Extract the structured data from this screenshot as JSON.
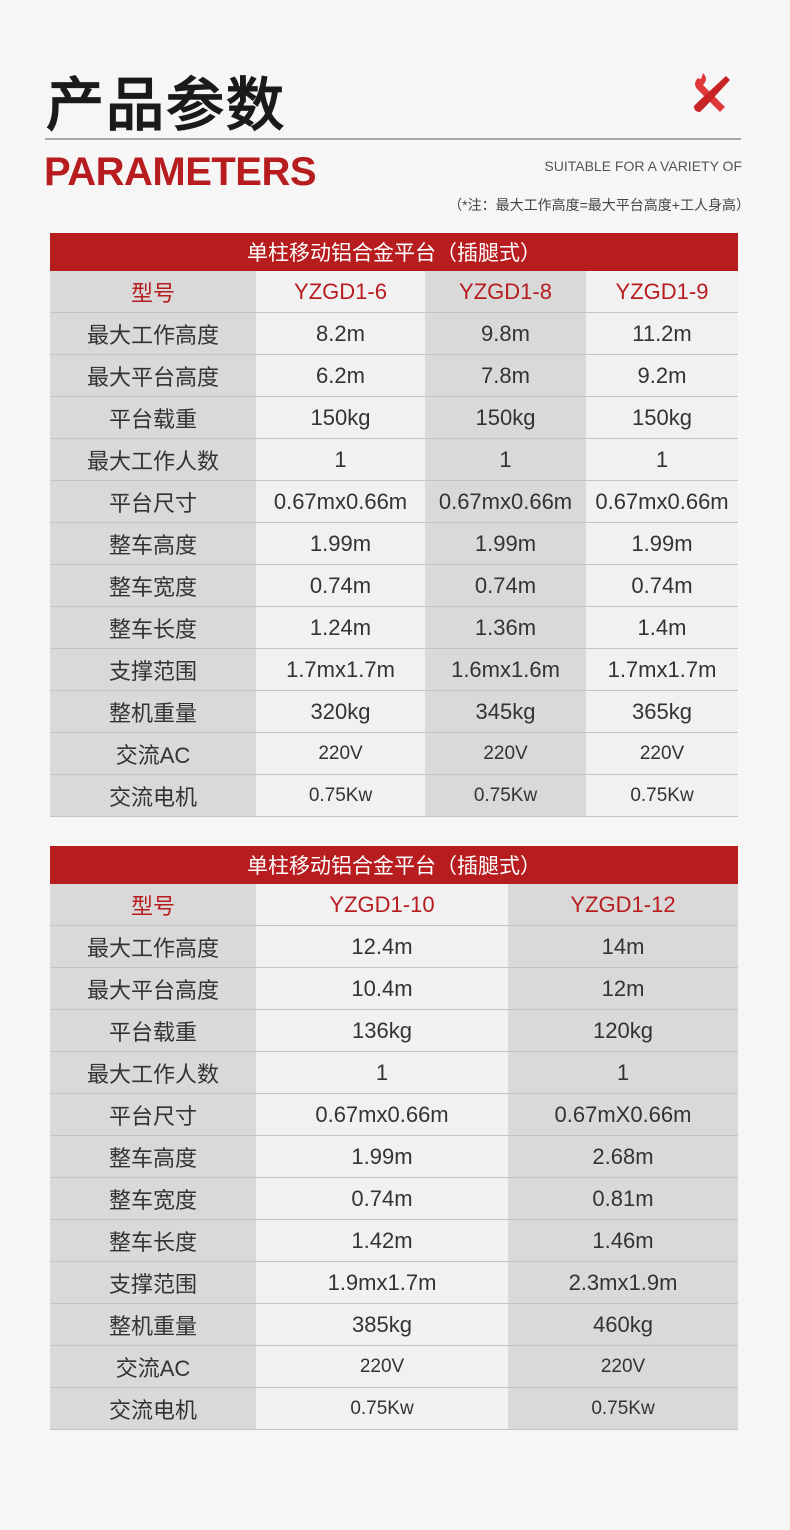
{
  "header": {
    "title": "产品参数",
    "subtitle": "PARAMETERS",
    "tagline": "SUITABLE FOR A VARIETY OF",
    "note": "（*注：最大工作高度=最大平台高度+工人身高）",
    "icon": "tools-icon",
    "accent": "#b71c1f"
  },
  "tables": [
    {
      "title": "单柱移动铝合金平台（插腿式）",
      "rows": [
        [
          "型号",
          "YZGD1-6",
          "YZGD1-8",
          "YZGD1-9"
        ],
        [
          "最大工作高度",
          "8.2m",
          "9.8m",
          "11.2m"
        ],
        [
          "最大平台高度",
          "6.2m",
          "7.8m",
          "9.2m"
        ],
        [
          "平台载重",
          "150kg",
          "150kg",
          "150kg"
        ],
        [
          "最大工作人数",
          "1",
          "1",
          "1"
        ],
        [
          "平台尺寸",
          "0.67mx0.66m",
          "0.67mx0.66m",
          "0.67mx0.66m"
        ],
        [
          "整车高度",
          "1.99m",
          "1.99m",
          "1.99m"
        ],
        [
          "整车宽度",
          "0.74m",
          "0.74m",
          "0.74m"
        ],
        [
          "整车长度",
          "1.24m",
          "1.36m",
          "1.4m"
        ],
        [
          "支撑范围",
          "1.7mx1.7m",
          "1.6mx1.6m",
          "1.7mx1.7m"
        ],
        [
          "整机重量",
          "320kg",
          "345kg",
          "365kg"
        ],
        [
          "交流AC",
          "220V",
          "220V",
          "220V"
        ],
        [
          "交流电机",
          "0.75Kw",
          "0.75Kw",
          "0.75Kw"
        ]
      ]
    },
    {
      "title": "单柱移动铝合金平台（插腿式）",
      "rows": [
        [
          "型号",
          "YZGD1-10",
          "YZGD1-12"
        ],
        [
          "最大工作高度",
          "12.4m",
          "14m"
        ],
        [
          "最大平台高度",
          "10.4m",
          "12m"
        ],
        [
          "平台载重",
          "136kg",
          "120kg"
        ],
        [
          "最大工作人数",
          "1",
          "1"
        ],
        [
          "平台尺寸",
          "0.67mx0.66m",
          "0.67mX0.66m"
        ],
        [
          "整车高度",
          "1.99m",
          "2.68m"
        ],
        [
          "整车宽度",
          "0.74m",
          "0.81m"
        ],
        [
          "整车长度",
          "1.42m",
          "1.46m"
        ],
        [
          "支撑范围",
          "1.9mx1.7m",
          "2.3mx1.9m"
        ],
        [
          "整机重量",
          "385kg",
          "460kg"
        ],
        [
          "交流AC",
          "220V",
          "220V"
        ],
        [
          "交流电机",
          "0.75Kw",
          "0.75Kw"
        ]
      ]
    }
  ]
}
